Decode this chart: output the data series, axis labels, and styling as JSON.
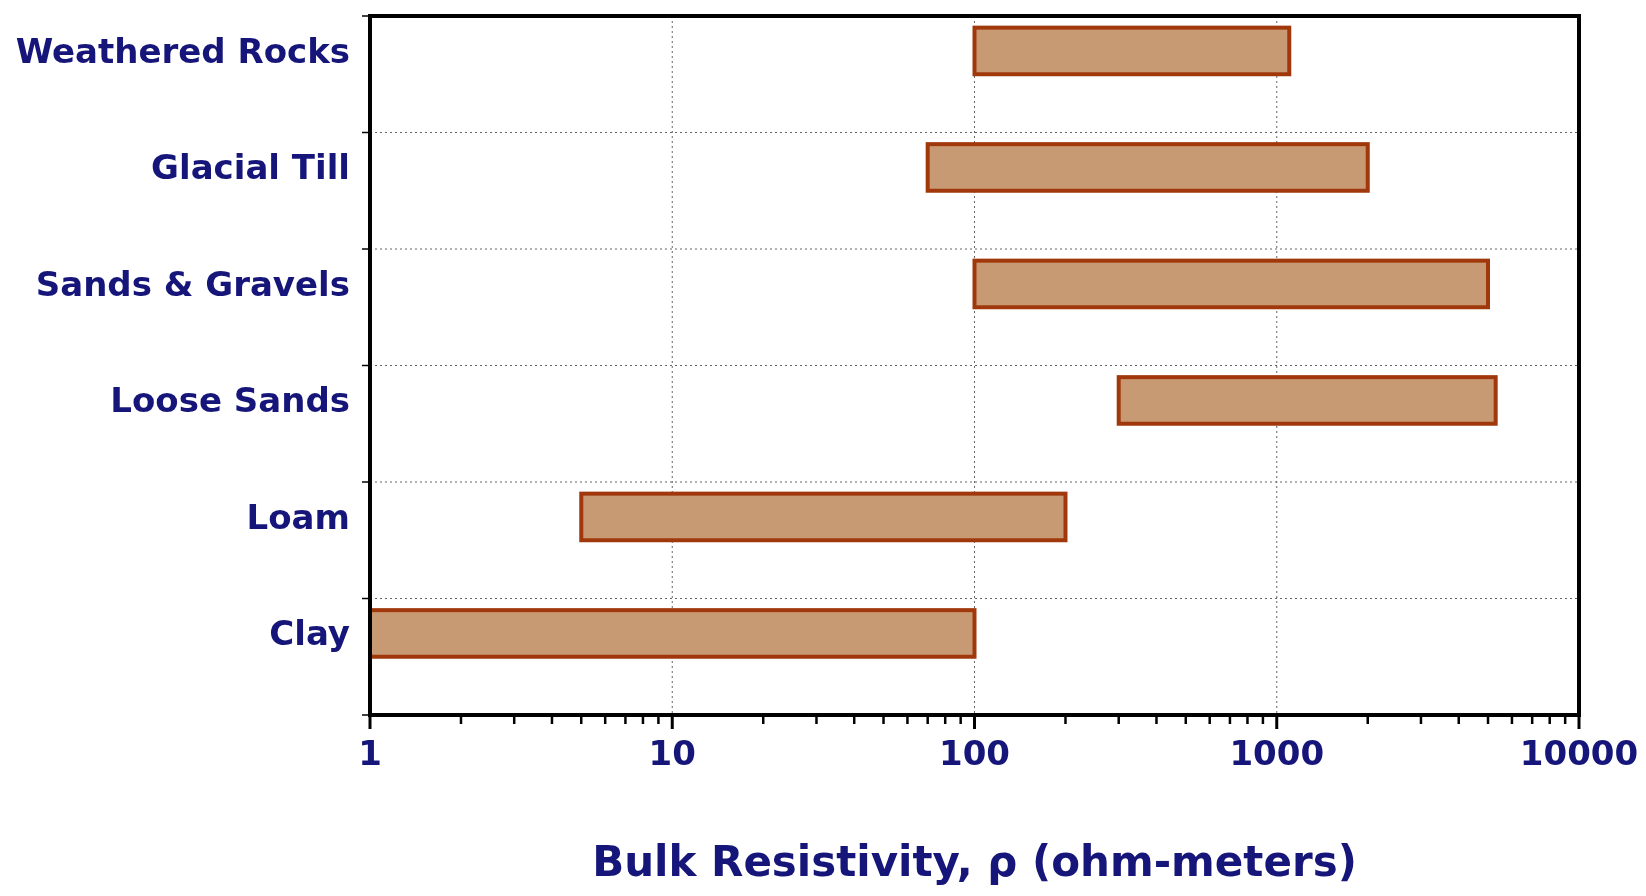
{
  "chart_data": {
    "type": "bar",
    "orientation": "horizontal",
    "xlabel": "Bulk Resistivity, ρ (ohm-meters)",
    "categories": [
      "Weathered Rocks",
      "Glacial Till",
      "Sands & Gravels",
      "Loose Sands",
      "Loam",
      "Clay"
    ],
    "base": [
      100,
      70,
      100,
      300,
      5,
      1
    ],
    "values": [
      1000,
      1930,
      4900,
      5000,
      195,
      99
    ],
    "color": "#c89a74",
    "log": "x",
    "grid": true,
    "xlim": [
      1,
      10000
    ],
    "xticks": [
      1,
      {
        "value": 2,
        "label": null
      },
      {
        "value": 3,
        "label": null
      },
      {
        "value": 4,
        "label": null
      },
      {
        "value": 5,
        "label": null
      },
      {
        "value": 6,
        "label": null
      },
      {
        "value": 7,
        "label": null
      },
      {
        "value": 8,
        "label": null
      },
      {
        "value": 9,
        "label": null
      },
      10,
      {
        "value": 20,
        "label": null
      },
      {
        "value": 30,
        "label": null
      },
      {
        "value": 40,
        "label": null
      },
      {
        "value": 50,
        "label": null
      },
      {
        "value": 60,
        "label": null
      },
      {
        "value": 70,
        "label": null
      },
      {
        "value": 80,
        "label": null
      },
      {
        "value": 90,
        "label": null
      },
      100,
      {
        "value": 200,
        "label": null
      },
      {
        "value": 300,
        "label": null
      },
      {
        "value": 400,
        "label": null
      },
      {
        "value": 500,
        "label": null
      },
      {
        "value": 600,
        "label": null
      },
      {
        "value": 700,
        "label": null
      },
      {
        "value": 800,
        "label": null
      },
      {
        "value": 900,
        "label": null
      },
      1000,
      {
        "value": 2000,
        "label": null
      },
      {
        "value": 3000,
        "label": null
      },
      {
        "value": 4000,
        "label": null
      },
      {
        "value": 5000,
        "label": null
      },
      {
        "value": 6000,
        "label": null
      },
      {
        "value": 7000,
        "label": null
      },
      {
        "value": 8000,
        "label": null
      },
      {
        "value": 9000,
        "label": null
      },
      10000
    ]
  }
}
